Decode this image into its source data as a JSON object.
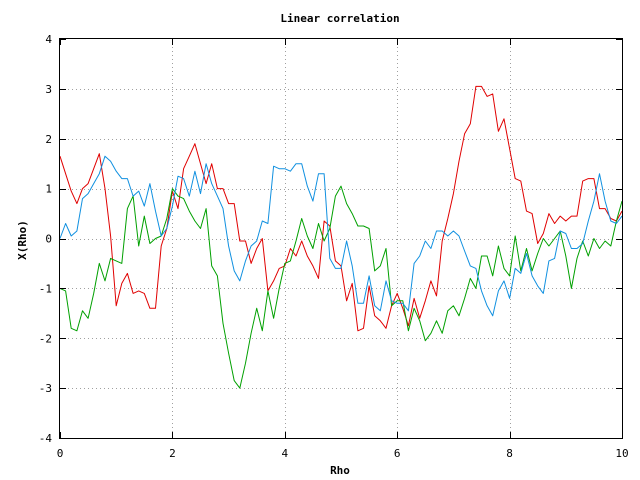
{
  "chart_data": {
    "type": "line",
    "title": "Linear correlation",
    "xlabel": "Rho",
    "ylabel": "X(Rho)",
    "xlim": [
      0,
      10
    ],
    "ylim": [
      -4,
      4
    ],
    "xticks": [
      0,
      2,
      4,
      6,
      8,
      10
    ],
    "yticks": [
      -4,
      -3,
      -2,
      -1,
      0,
      1,
      2,
      3,
      4
    ],
    "grid": true,
    "series": [
      {
        "color": "#e00000",
        "x": [
          0.0,
          0.1,
          0.2,
          0.3,
          0.4,
          0.5,
          0.6,
          0.7,
          0.8,
          0.9,
          1.0,
          1.1,
          1.2,
          1.3,
          1.4,
          1.5,
          1.6,
          1.7,
          1.8,
          1.9,
          2.0,
          2.1,
          2.2,
          2.3,
          2.4,
          2.5,
          2.6,
          2.7,
          2.8,
          2.9,
          3.0,
          3.1,
          3.2,
          3.3,
          3.4,
          3.5,
          3.6,
          3.7,
          3.8,
          3.9,
          4.0,
          4.1,
          4.2,
          4.3,
          4.4,
          4.5,
          4.6,
          4.7,
          4.8,
          4.9,
          5.0,
          5.1,
          5.2,
          5.3,
          5.4,
          5.5,
          5.6,
          5.7,
          5.8,
          5.9,
          6.0,
          6.1,
          6.2,
          6.3,
          6.4,
          6.5,
          6.6,
          6.7,
          6.8,
          6.9,
          7.0,
          7.1,
          7.2,
          7.3,
          7.4,
          7.5,
          7.6,
          7.7,
          7.8,
          7.9,
          8.0,
          8.1,
          8.2,
          8.3,
          8.4,
          8.5,
          8.6,
          8.7,
          8.8,
          8.9,
          9.0,
          9.1,
          9.2,
          9.3,
          9.4,
          9.5,
          9.6,
          9.7,
          9.8,
          9.9,
          10.0
        ],
        "y": [
          1.65,
          1.3,
          0.95,
          0.7,
          1.0,
          1.1,
          1.4,
          1.7,
          1.0,
          0.05,
          -1.35,
          -0.9,
          -0.7,
          -1.1,
          -1.05,
          -1.1,
          -1.4,
          -1.4,
          -0.15,
          0.2,
          0.95,
          0.6,
          1.4,
          1.65,
          1.9,
          1.5,
          1.1,
          1.5,
          1.0,
          1.0,
          0.7,
          0.7,
          -0.05,
          -0.05,
          -0.5,
          -0.2,
          0.0,
          -1.05,
          -0.85,
          -0.6,
          -0.55,
          -0.2,
          -0.35,
          -0.05,
          -0.35,
          -0.55,
          -0.8,
          0.35,
          0.25,
          -0.45,
          -0.55,
          -1.25,
          -0.9,
          -1.85,
          -1.8,
          -0.95,
          -1.55,
          -1.65,
          -1.8,
          -1.35,
          -1.1,
          -1.4,
          -1.75,
          -1.2,
          -1.6,
          -1.25,
          -0.85,
          -1.15,
          -0.05,
          0.4,
          0.9,
          1.55,
          2.1,
          2.3,
          3.05,
          3.05,
          2.85,
          2.9,
          2.15,
          2.4,
          1.8,
          1.2,
          1.15,
          0.55,
          0.5,
          -0.1,
          0.1,
          0.5,
          0.3,
          0.45,
          0.35,
          0.45,
          0.45,
          1.15,
          1.2,
          1.2,
          0.6,
          0.6,
          0.4,
          0.35,
          0.55
        ]
      },
      {
        "color": "#00a000",
        "x": [
          0.0,
          0.1,
          0.2,
          0.3,
          0.4,
          0.5,
          0.6,
          0.7,
          0.8,
          0.9,
          1.0,
          1.1,
          1.2,
          1.3,
          1.4,
          1.5,
          1.6,
          1.7,
          1.8,
          1.9,
          2.0,
          2.1,
          2.2,
          2.3,
          2.4,
          2.5,
          2.6,
          2.7,
          2.8,
          2.9,
          3.0,
          3.1,
          3.2,
          3.3,
          3.4,
          3.5,
          3.6,
          3.7,
          3.8,
          3.9,
          4.0,
          4.1,
          4.2,
          4.3,
          4.4,
          4.5,
          4.6,
          4.7,
          4.8,
          4.9,
          5.0,
          5.1,
          5.2,
          5.3,
          5.4,
          5.5,
          5.6,
          5.7,
          5.8,
          5.9,
          6.0,
          6.1,
          6.2,
          6.3,
          6.4,
          6.5,
          6.6,
          6.7,
          6.8,
          6.9,
          7.0,
          7.1,
          7.2,
          7.3,
          7.4,
          7.5,
          7.6,
          7.7,
          7.8,
          7.9,
          8.0,
          8.1,
          8.2,
          8.3,
          8.4,
          8.5,
          8.6,
          8.7,
          8.8,
          8.9,
          9.0,
          9.1,
          9.2,
          9.3,
          9.4,
          9.5,
          9.6,
          9.7,
          9.8,
          9.9,
          10.0
        ],
        "y": [
          -1.0,
          -1.05,
          -1.8,
          -1.85,
          -1.45,
          -1.6,
          -1.1,
          -0.5,
          -0.85,
          -0.4,
          -0.45,
          -0.5,
          0.6,
          0.85,
          -0.15,
          0.45,
          -0.1,
          0.0,
          0.05,
          0.4,
          1.0,
          0.85,
          0.8,
          0.55,
          0.35,
          0.2,
          0.6,
          -0.55,
          -0.75,
          -1.7,
          -2.3,
          -2.85,
          -3.0,
          -2.5,
          -1.9,
          -1.4,
          -1.85,
          -1.05,
          -1.6,
          -1.0,
          -0.5,
          -0.45,
          -0.05,
          0.4,
          0.05,
          -0.2,
          0.3,
          -0.05,
          0.2,
          0.85,
          1.05,
          0.7,
          0.5,
          0.25,
          0.25,
          0.2,
          -0.65,
          -0.55,
          -0.2,
          -1.35,
          -1.25,
          -1.25,
          -1.85,
          -1.4,
          -1.65,
          -2.05,
          -1.9,
          -1.65,
          -1.9,
          -1.45,
          -1.35,
          -1.55,
          -1.2,
          -0.8,
          -1.0,
          -0.35,
          -0.35,
          -0.75,
          -0.15,
          -0.6,
          -0.75,
          0.05,
          -0.65,
          -0.2,
          -0.65,
          -0.3,
          0.0,
          -0.15,
          0.0,
          0.15,
          -0.35,
          -1.0,
          -0.4,
          -0.05,
          -0.35,
          0.0,
          -0.2,
          -0.05,
          -0.15,
          0.35,
          0.75
        ]
      },
      {
        "color": "#1090e0",
        "x": [
          0.0,
          0.1,
          0.2,
          0.3,
          0.4,
          0.5,
          0.6,
          0.7,
          0.8,
          0.9,
          1.0,
          1.1,
          1.2,
          1.3,
          1.4,
          1.5,
          1.6,
          1.7,
          1.8,
          1.9,
          2.0,
          2.1,
          2.2,
          2.3,
          2.4,
          2.5,
          2.6,
          2.7,
          2.8,
          2.9,
          3.0,
          3.1,
          3.2,
          3.3,
          3.4,
          3.5,
          3.6,
          3.7,
          3.8,
          3.9,
          4.0,
          4.1,
          4.2,
          4.3,
          4.4,
          4.5,
          4.6,
          4.7,
          4.8,
          4.9,
          5.0,
          5.1,
          5.2,
          5.3,
          5.4,
          5.5,
          5.6,
          5.7,
          5.8,
          5.9,
          6.0,
          6.1,
          6.2,
          6.3,
          6.4,
          6.5,
          6.6,
          6.7,
          6.8,
          6.9,
          7.0,
          7.1,
          7.2,
          7.3,
          7.4,
          7.5,
          7.6,
          7.7,
          7.8,
          7.9,
          8.0,
          8.1,
          8.2,
          8.3,
          8.4,
          8.5,
          8.6,
          8.7,
          8.8,
          8.9,
          9.0,
          9.1,
          9.2,
          9.3,
          9.4,
          9.5,
          9.6,
          9.7,
          9.8,
          9.9,
          10.0
        ],
        "y": [
          0.0,
          0.3,
          0.05,
          0.15,
          0.8,
          0.9,
          1.1,
          1.3,
          1.65,
          1.55,
          1.35,
          1.2,
          1.2,
          0.85,
          0.95,
          0.65,
          1.1,
          0.55,
          0.05,
          0.2,
          0.65,
          1.25,
          1.2,
          0.85,
          1.35,
          0.9,
          1.5,
          1.1,
          0.85,
          0.6,
          -0.15,
          -0.65,
          -0.85,
          -0.45,
          -0.15,
          -0.05,
          0.35,
          0.3,
          1.45,
          1.4,
          1.4,
          1.35,
          1.5,
          1.5,
          1.05,
          0.75,
          1.3,
          1.3,
          -0.4,
          -0.6,
          -0.6,
          -0.05,
          -0.55,
          -1.3,
          -1.3,
          -0.75,
          -1.35,
          -1.45,
          -0.85,
          -1.25,
          -1.3,
          -1.3,
          -1.45,
          -0.5,
          -0.35,
          -0.05,
          -0.2,
          0.15,
          0.15,
          0.05,
          0.15,
          0.05,
          -0.25,
          -0.55,
          -0.6,
          -1.05,
          -1.35,
          -1.55,
          -1.05,
          -0.85,
          -1.2,
          -0.6,
          -0.7,
          -0.3,
          -0.75,
          -0.95,
          -1.1,
          -0.45,
          -0.4,
          0.15,
          0.1,
          -0.2,
          -0.2,
          -0.1,
          0.35,
          0.75,
          1.3,
          0.75,
          0.35,
          0.3,
          0.45
        ]
      }
    ]
  }
}
